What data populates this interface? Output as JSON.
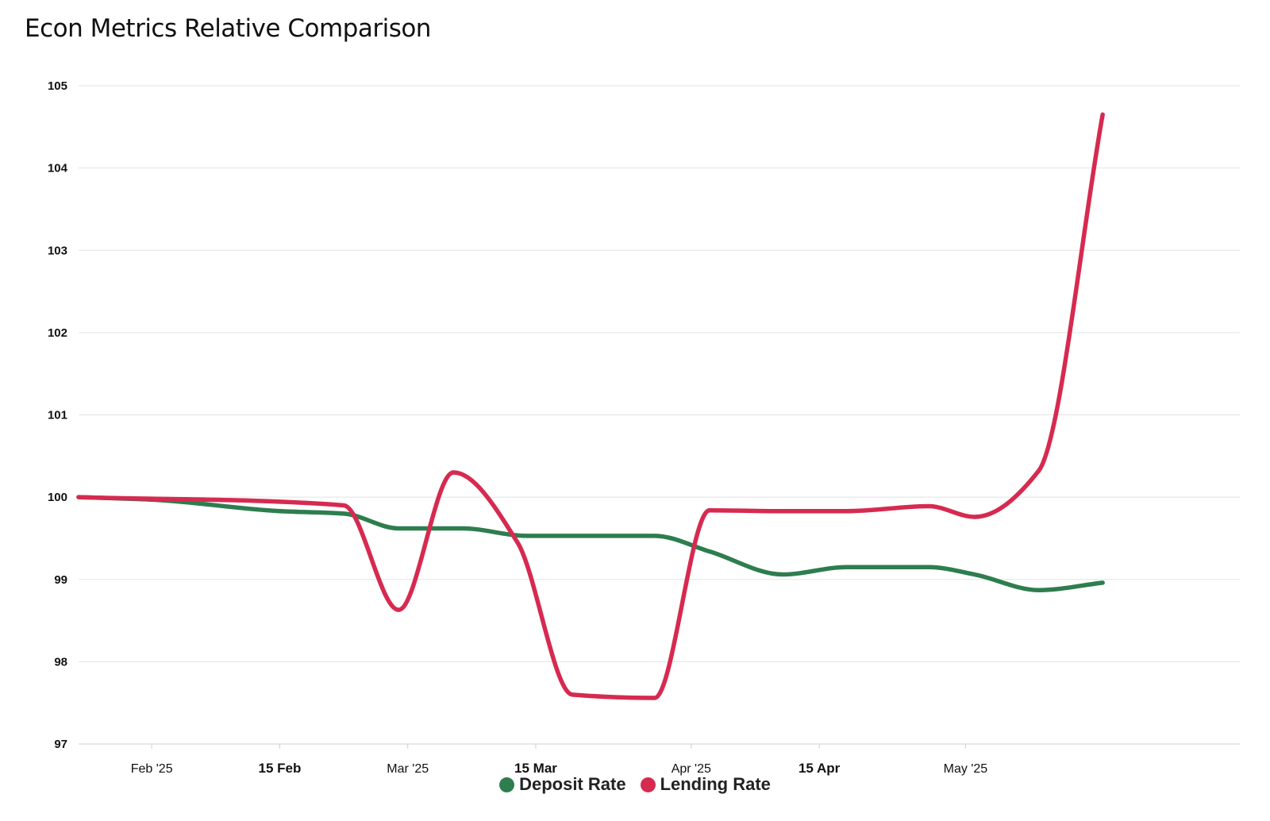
{
  "chart_data": {
    "type": "line",
    "title": "Econ Metrics Relative Comparison",
    "xlabel": "",
    "ylabel": "",
    "x_range": [
      "2025-01-24",
      "2025-05-31"
    ],
    "ylim": [
      97,
      105
    ],
    "y_ticks": [
      97,
      98,
      99,
      100,
      101,
      102,
      103,
      104,
      105
    ],
    "x_ticks": [
      {
        "label": "Feb '25",
        "date": "2025-02-01",
        "major": false
      },
      {
        "label": "15 Feb",
        "date": "2025-02-15",
        "major": true
      },
      {
        "label": "Mar '25",
        "date": "2025-03-01",
        "major": false
      },
      {
        "label": "15 Mar",
        "date": "2025-03-15",
        "major": true
      },
      {
        "label": "Apr '25",
        "date": "2025-04-01",
        "major": false
      },
      {
        "label": "15 Apr",
        "date": "2025-04-15",
        "major": true
      },
      {
        "label": "May '25",
        "date": "2025-05-01",
        "major": false
      }
    ],
    "grid": true,
    "legend_position": "bottom-center",
    "series": [
      {
        "name": "Deposit Rate",
        "color": "#2e7d4f",
        "points": [
          {
            "x": "2025-01-24",
            "y": 100.0
          },
          {
            "x": "2025-02-01",
            "y": 99.97
          },
          {
            "x": "2025-02-15",
            "y": 99.83
          },
          {
            "x": "2025-02-22",
            "y": 99.8
          },
          {
            "x": "2025-02-28",
            "y": 99.62
          },
          {
            "x": "2025-03-07",
            "y": 99.62
          },
          {
            "x": "2025-03-14",
            "y": 99.53
          },
          {
            "x": "2025-03-28",
            "y": 99.53
          },
          {
            "x": "2025-04-03",
            "y": 99.34
          },
          {
            "x": "2025-04-11",
            "y": 99.06
          },
          {
            "x": "2025-04-18",
            "y": 99.15
          },
          {
            "x": "2025-04-27",
            "y": 99.15
          },
          {
            "x": "2025-05-02",
            "y": 99.06
          },
          {
            "x": "2025-05-09",
            "y": 98.87
          },
          {
            "x": "2025-05-16",
            "y": 98.96
          }
        ]
      },
      {
        "name": "Lending Rate",
        "color": "#d62a50",
        "points": [
          {
            "x": "2025-01-24",
            "y": 100.0
          },
          {
            "x": "2025-02-22",
            "y": 99.9
          },
          {
            "x": "2025-02-28",
            "y": 98.63
          },
          {
            "x": "2025-03-06",
            "y": 100.3
          },
          {
            "x": "2025-03-13",
            "y": 99.45
          },
          {
            "x": "2025-03-19",
            "y": 97.6
          },
          {
            "x": "2025-03-28",
            "y": 97.56
          },
          {
            "x": "2025-04-03",
            "y": 99.84
          },
          {
            "x": "2025-04-11",
            "y": 99.83
          },
          {
            "x": "2025-04-18",
            "y": 99.83
          },
          {
            "x": "2025-04-27",
            "y": 99.89
          },
          {
            "x": "2025-05-02",
            "y": 99.76
          },
          {
            "x": "2025-05-09",
            "y": 100.32
          },
          {
            "x": "2025-05-16",
            "y": 104.65
          }
        ]
      }
    ]
  }
}
